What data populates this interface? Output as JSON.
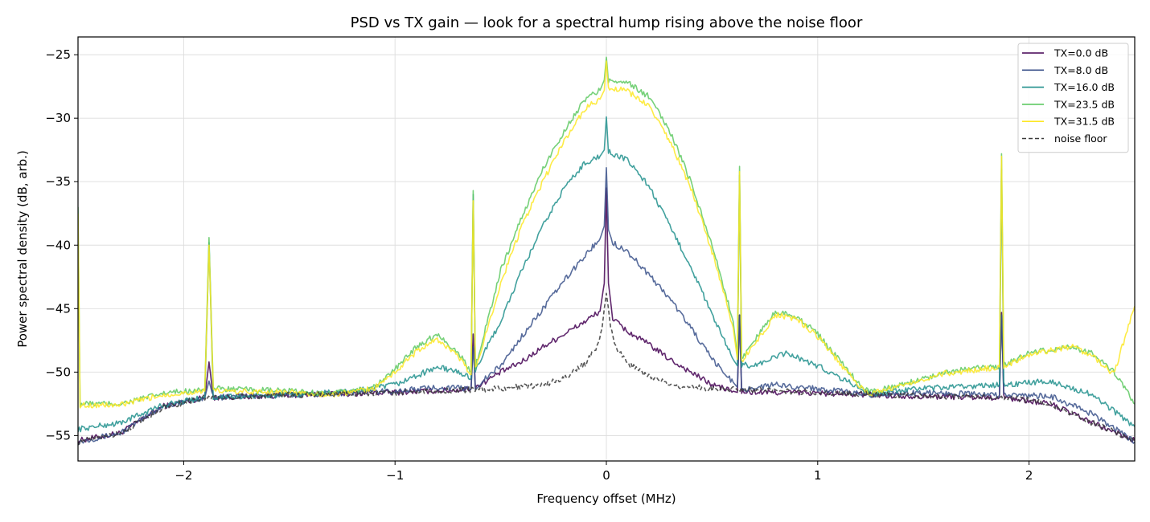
{
  "chart_data": {
    "type": "line",
    "title": "PSD vs TX gain — look for a spectral hump rising above the noise floor",
    "xlabel": "Frequency offset (MHz)",
    "ylabel": "Power spectral density (dB, arb.)",
    "xlim": [
      -2.5,
      2.5
    ],
    "ylim": [
      -57,
      -23.6
    ],
    "xticks": [
      -2,
      -1,
      0,
      1,
      2
    ],
    "xtick_labels": [
      "−2",
      "−1",
      "0",
      "1",
      "2"
    ],
    "yticks": [
      -55,
      -50,
      -45,
      -40,
      -35,
      -30,
      -25
    ],
    "ytick_labels": [
      "−55",
      "−50",
      "−45",
      "−40",
      "−35",
      "−30",
      "−25"
    ],
    "grid": true,
    "legend_position": "top-right",
    "series": [
      {
        "name": "TX=0.0 dB",
        "color": "#440154",
        "style": "solid",
        "points": [
          [
            -2.5,
            -55.4
          ],
          [
            -2.3,
            -54.8
          ],
          [
            -2.1,
            -52.7
          ],
          [
            -1.9,
            -52.0
          ],
          [
            -1.88,
            -49.2
          ],
          [
            -1.86,
            -52.0
          ],
          [
            -1.5,
            -51.8
          ],
          [
            -1.0,
            -51.6
          ],
          [
            -0.7,
            -51.4
          ],
          [
            -0.64,
            -51.3
          ],
          [
            -0.63,
            -47.0
          ],
          [
            -0.62,
            -51.2
          ],
          [
            -0.5,
            -50.0
          ],
          [
            -0.4,
            -49.2
          ],
          [
            -0.3,
            -48.0
          ],
          [
            -0.2,
            -47.0
          ],
          [
            -0.1,
            -46.0
          ],
          [
            -0.03,
            -45.2
          ],
          [
            -0.01,
            -43.0
          ],
          [
            0.0,
            -35.5
          ],
          [
            0.01,
            -43.0
          ],
          [
            0.03,
            -45.8
          ],
          [
            0.1,
            -46.8
          ],
          [
            0.2,
            -47.8
          ],
          [
            0.3,
            -49.0
          ],
          [
            0.4,
            -50.0
          ],
          [
            0.5,
            -51.0
          ],
          [
            0.6,
            -51.5
          ],
          [
            0.62,
            -51.6
          ],
          [
            0.63,
            -45.5
          ],
          [
            0.64,
            -51.6
          ],
          [
            0.9,
            -51.6
          ],
          [
            1.25,
            -51.8
          ],
          [
            1.5,
            -51.9
          ],
          [
            1.86,
            -52.0
          ],
          [
            1.87,
            -45.3
          ],
          [
            1.88,
            -52.0
          ],
          [
            2.1,
            -52.5
          ],
          [
            2.3,
            -54.0
          ],
          [
            2.5,
            -55.4
          ]
        ]
      },
      {
        "name": "TX=8.0 dB",
        "color": "#3b528b",
        "style": "solid",
        "points": [
          [
            -2.5,
            -55.5
          ],
          [
            -2.3,
            -54.8
          ],
          [
            -2.1,
            -52.7
          ],
          [
            -1.9,
            -52.0
          ],
          [
            -1.88,
            -50.7
          ],
          [
            -1.86,
            -52.0
          ],
          [
            -1.5,
            -51.8
          ],
          [
            -1.0,
            -51.5
          ],
          [
            -0.8,
            -51.2
          ],
          [
            -0.64,
            -51.3
          ],
          [
            -0.63,
            -48.0
          ],
          [
            -0.62,
            -51.2
          ],
          [
            -0.5,
            -49.5
          ],
          [
            -0.4,
            -47.2
          ],
          [
            -0.3,
            -45.0
          ],
          [
            -0.2,
            -42.8
          ],
          [
            -0.1,
            -40.8
          ],
          [
            -0.03,
            -39.5
          ],
          [
            -0.01,
            -38.5
          ],
          [
            0.0,
            -33.9
          ],
          [
            0.01,
            -38.8
          ],
          [
            0.03,
            -39.8
          ],
          [
            0.1,
            -40.5
          ],
          [
            0.2,
            -42.3
          ],
          [
            0.3,
            -44.2
          ],
          [
            0.4,
            -46.5
          ],
          [
            0.5,
            -49.0
          ],
          [
            0.6,
            -50.8
          ],
          [
            0.62,
            -51.2
          ],
          [
            0.63,
            -45.5
          ],
          [
            0.64,
            -51.4
          ],
          [
            0.8,
            -51.0
          ],
          [
            1.0,
            -51.3
          ],
          [
            1.25,
            -51.8
          ],
          [
            1.5,
            -51.6
          ],
          [
            1.86,
            -51.8
          ],
          [
            1.87,
            -45.5
          ],
          [
            1.88,
            -51.8
          ],
          [
            2.1,
            -51.9
          ],
          [
            2.3,
            -53.3
          ],
          [
            2.5,
            -55.5
          ]
        ]
      },
      {
        "name": "TX=16.0 dB",
        "color": "#21908d",
        "style": "solid",
        "points": [
          [
            -2.5,
            -54.5
          ],
          [
            -2.3,
            -54.0
          ],
          [
            -2.1,
            -52.6
          ],
          [
            -1.9,
            -52.0
          ],
          [
            -1.88,
            -39.8
          ],
          [
            -1.86,
            -52.0
          ],
          [
            -1.5,
            -51.8
          ],
          [
            -1.2,
            -51.5
          ],
          [
            -1.0,
            -51.0
          ],
          [
            -0.8,
            -49.6
          ],
          [
            -0.7,
            -50.0
          ],
          [
            -0.64,
            -50.5
          ],
          [
            -0.63,
            -36.0
          ],
          [
            -0.62,
            -49.8
          ],
          [
            -0.5,
            -46.0
          ],
          [
            -0.4,
            -42.0
          ],
          [
            -0.3,
            -38.5
          ],
          [
            -0.2,
            -35.5
          ],
          [
            -0.1,
            -33.5
          ],
          [
            -0.03,
            -33.0
          ],
          [
            -0.01,
            -32.5
          ],
          [
            0.0,
            -29.9
          ],
          [
            0.01,
            -32.6
          ],
          [
            0.05,
            -33.0
          ],
          [
            0.1,
            -33.3
          ],
          [
            0.2,
            -35.3
          ],
          [
            0.3,
            -38.5
          ],
          [
            0.4,
            -41.7
          ],
          [
            0.5,
            -45.5
          ],
          [
            0.6,
            -49.0
          ],
          [
            0.62,
            -49.5
          ],
          [
            0.63,
            -34.5
          ],
          [
            0.64,
            -49.4
          ],
          [
            0.7,
            -49.5
          ],
          [
            0.85,
            -48.5
          ],
          [
            1.0,
            -49.5
          ],
          [
            1.25,
            -51.7
          ],
          [
            1.5,
            -51.3
          ],
          [
            1.86,
            -51.0
          ],
          [
            1.87,
            -34.0
          ],
          [
            1.88,
            -51.0
          ],
          [
            2.1,
            -50.7
          ],
          [
            2.3,
            -51.8
          ],
          [
            2.5,
            -54.3
          ]
        ]
      },
      {
        "name": "TX=23.5 dB",
        "color": "#5ec962",
        "style": "solid",
        "points": [
          [
            -2.5,
            -37.0
          ],
          [
            -2.49,
            -52.5
          ],
          [
            -2.3,
            -52.5
          ],
          [
            -2.1,
            -51.7
          ],
          [
            -1.9,
            -51.3
          ],
          [
            -1.88,
            -39.4
          ],
          [
            -1.86,
            -51.3
          ],
          [
            -1.5,
            -51.5
          ],
          [
            -1.3,
            -51.7
          ],
          [
            -1.1,
            -51.2
          ],
          [
            -1.0,
            -49.8
          ],
          [
            -0.9,
            -48.0
          ],
          [
            -0.8,
            -47.0
          ],
          [
            -0.7,
            -48.5
          ],
          [
            -0.64,
            -50.0
          ],
          [
            -0.63,
            -35.7
          ],
          [
            -0.62,
            -49.6
          ],
          [
            -0.5,
            -42.0
          ],
          [
            -0.4,
            -37.8
          ],
          [
            -0.3,
            -34.0
          ],
          [
            -0.2,
            -31.0
          ],
          [
            -0.1,
            -28.5
          ],
          [
            -0.03,
            -27.8
          ],
          [
            -0.01,
            -27.0
          ],
          [
            0.0,
            -25.2
          ],
          [
            0.01,
            -27.0
          ],
          [
            0.05,
            -27.0
          ],
          [
            0.1,
            -27.2
          ],
          [
            0.2,
            -28.3
          ],
          [
            0.3,
            -31.0
          ],
          [
            0.4,
            -35.0
          ],
          [
            0.5,
            -40.0
          ],
          [
            0.6,
            -46.0
          ],
          [
            0.62,
            -48.8
          ],
          [
            0.63,
            -33.8
          ],
          [
            0.64,
            -49.0
          ],
          [
            0.7,
            -47.5
          ],
          [
            0.8,
            -45.2
          ],
          [
            0.9,
            -45.6
          ],
          [
            1.0,
            -47.0
          ],
          [
            1.1,
            -49.0
          ],
          [
            1.2,
            -51.0
          ],
          [
            1.25,
            -51.6
          ],
          [
            1.4,
            -51.0
          ],
          [
            1.6,
            -50.0
          ],
          [
            1.86,
            -49.5
          ],
          [
            1.87,
            -32.8
          ],
          [
            1.88,
            -49.5
          ],
          [
            2.0,
            -48.5
          ],
          [
            2.2,
            -48.0
          ],
          [
            2.3,
            -48.5
          ],
          [
            2.4,
            -50.0
          ],
          [
            2.5,
            -52.5
          ]
        ]
      },
      {
        "name": "TX=31.5 dB",
        "color": "#fde725",
        "style": "solid",
        "points": [
          [
            -2.5,
            -37.5
          ],
          [
            -2.49,
            -52.6
          ],
          [
            -2.3,
            -52.6
          ],
          [
            -2.1,
            -51.8
          ],
          [
            -1.9,
            -51.5
          ],
          [
            -1.88,
            -40.0
          ],
          [
            -1.86,
            -51.5
          ],
          [
            -1.5,
            -51.6
          ],
          [
            -1.3,
            -51.8
          ],
          [
            -1.1,
            -51.3
          ],
          [
            -1.0,
            -50.0
          ],
          [
            -0.9,
            -48.4
          ],
          [
            -0.8,
            -47.4
          ],
          [
            -0.7,
            -48.8
          ],
          [
            -0.64,
            -50.2
          ],
          [
            -0.63,
            -36.5
          ],
          [
            -0.62,
            -49.8
          ],
          [
            -0.5,
            -43.0
          ],
          [
            -0.4,
            -38.5
          ],
          [
            -0.3,
            -35.0
          ],
          [
            -0.2,
            -31.8
          ],
          [
            -0.1,
            -29.2
          ],
          [
            -0.03,
            -28.5
          ],
          [
            -0.01,
            -27.8
          ],
          [
            0.0,
            -25.5
          ],
          [
            0.01,
            -27.8
          ],
          [
            0.05,
            -27.7
          ],
          [
            0.1,
            -27.9
          ],
          [
            0.2,
            -29.0
          ],
          [
            0.3,
            -31.8
          ],
          [
            0.4,
            -35.5
          ],
          [
            0.5,
            -40.5
          ],
          [
            0.6,
            -46.5
          ],
          [
            0.62,
            -49.0
          ],
          [
            0.63,
            -34.2
          ],
          [
            0.64,
            -49.1
          ],
          [
            0.7,
            -47.8
          ],
          [
            0.8,
            -45.5
          ],
          [
            0.9,
            -45.8
          ],
          [
            1.0,
            -47.2
          ],
          [
            1.1,
            -49.2
          ],
          [
            1.2,
            -51.2
          ],
          [
            1.25,
            -51.7
          ],
          [
            1.4,
            -51.0
          ],
          [
            1.6,
            -50.1
          ],
          [
            1.86,
            -49.6
          ],
          [
            1.87,
            -33.0
          ],
          [
            1.88,
            -49.6
          ],
          [
            2.0,
            -48.6
          ],
          [
            2.2,
            -48.0
          ],
          [
            2.3,
            -48.7
          ],
          [
            2.4,
            -50.2
          ],
          [
            2.5,
            -44.8
          ]
        ]
      },
      {
        "name": "noise floor",
        "color": "#3a3a3a",
        "style": "dashed",
        "points": [
          [
            -2.5,
            -55.5
          ],
          [
            -2.3,
            -54.8
          ],
          [
            -2.1,
            -52.8
          ],
          [
            -1.9,
            -52.0
          ],
          [
            -1.5,
            -51.8
          ],
          [
            -1.0,
            -51.6
          ],
          [
            -0.5,
            -51.3
          ],
          [
            -0.3,
            -51.0
          ],
          [
            -0.2,
            -50.5
          ],
          [
            -0.1,
            -49.3
          ],
          [
            -0.05,
            -48.2
          ],
          [
            -0.02,
            -46.5
          ],
          [
            -0.01,
            -45.0
          ],
          [
            0.0,
            -43.8
          ],
          [
            0.01,
            -45.0
          ],
          [
            0.02,
            -46.5
          ],
          [
            0.05,
            -48.2
          ],
          [
            0.1,
            -49.3
          ],
          [
            0.2,
            -50.3
          ],
          [
            0.3,
            -51.0
          ],
          [
            0.5,
            -51.3
          ],
          [
            1.0,
            -51.6
          ],
          [
            1.5,
            -51.9
          ],
          [
            1.9,
            -52.0
          ],
          [
            2.1,
            -52.5
          ],
          [
            2.3,
            -54.0
          ],
          [
            2.5,
            -55.4
          ]
        ]
      }
    ]
  }
}
